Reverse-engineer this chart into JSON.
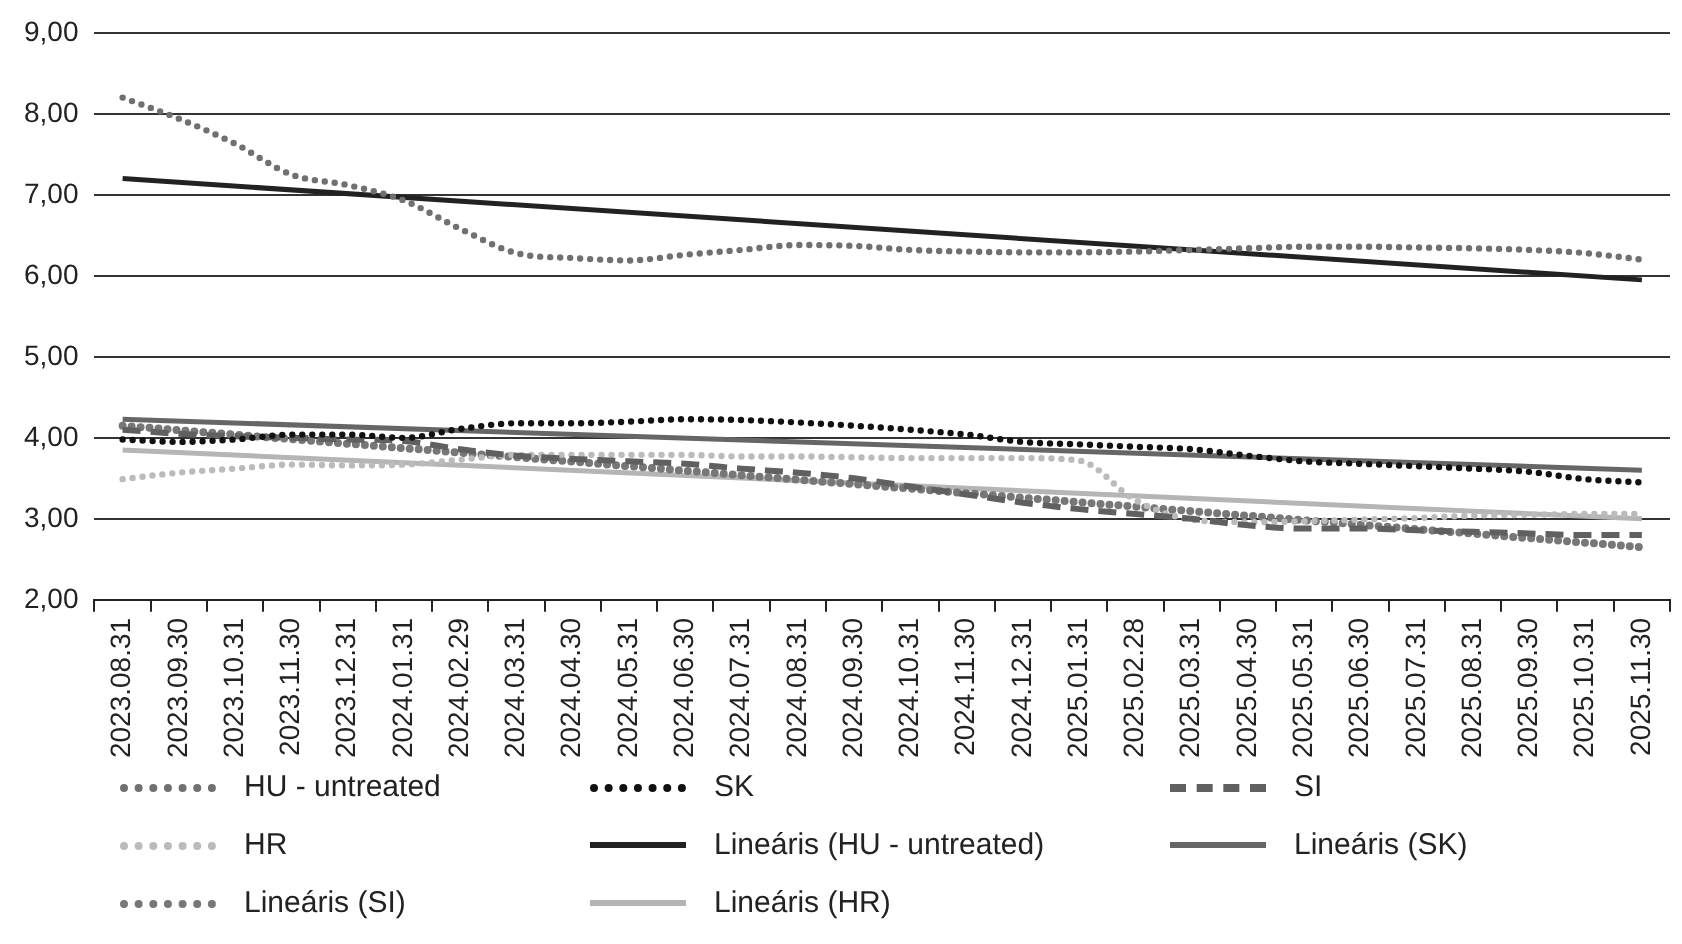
{
  "chart_data": {
    "type": "line",
    "categories": [
      "2023.08.31",
      "2023.09.30",
      "2023.10.31",
      "2023.11.30",
      "2023.12.31",
      "2024.01.31",
      "2024.02.29",
      "2024.03.31",
      "2024.04.30",
      "2024.05.31",
      "2024.06.30",
      "2024.07.31",
      "2024.08.31",
      "2024.09.30",
      "2024.10.31",
      "2024.11.30",
      "2024.12.31",
      "2025.01.31",
      "2025.02.28",
      "2025.03.31",
      "2025.04.30",
      "2025.05.31",
      "2025.06.30",
      "2025.07.31",
      "2025.08.31",
      "2025.09.30",
      "2025.10.31",
      "2025.11.30"
    ],
    "series": [
      {
        "name": "HU - untreated",
        "color": "#707070",
        "line_style": "dotted",
        "values": [
          8.2,
          7.94,
          7.63,
          7.25,
          7.12,
          6.93,
          6.58,
          6.28,
          6.22,
          6.19,
          6.26,
          6.32,
          6.38,
          6.37,
          6.32,
          6.3,
          6.29,
          6.29,
          6.3,
          6.32,
          6.34,
          6.36,
          6.36,
          6.35,
          6.34,
          6.32,
          6.28,
          6.2
        ]
      },
      {
        "name": "SK",
        "color": "#111111",
        "line_style": "dotted",
        "values": [
          3.98,
          3.95,
          3.98,
          4.04,
          4.04,
          4.0,
          4.11,
          4.18,
          4.18,
          4.2,
          4.23,
          4.22,
          4.19,
          4.15,
          4.1,
          4.04,
          3.95,
          3.92,
          3.89,
          3.86,
          3.78,
          3.71,
          3.68,
          3.65,
          3.62,
          3.58,
          3.49,
          3.45
        ]
      },
      {
        "name": "SI",
        "color": "#606060",
        "line_style": "dashed",
        "values": [
          4.1,
          4.05,
          4.02,
          4.0,
          3.98,
          3.96,
          3.86,
          3.78,
          3.74,
          3.71,
          3.68,
          3.62,
          3.57,
          3.5,
          3.4,
          3.3,
          3.2,
          3.12,
          3.06,
          3.0,
          2.92,
          2.88,
          2.88,
          2.86,
          2.84,
          2.82,
          2.8,
          2.8
        ]
      },
      {
        "name": "HR",
        "color": "#bbbbbb",
        "line_style": "dotted",
        "values": [
          3.49,
          3.57,
          3.62,
          3.67,
          3.66,
          3.67,
          3.73,
          3.79,
          3.79,
          3.79,
          3.79,
          3.77,
          3.77,
          3.76,
          3.75,
          3.75,
          3.75,
          3.72,
          3.23,
          2.99,
          2.96,
          2.97,
          2.99,
          3.01,
          3.04,
          3.05,
          3.06,
          3.06
        ]
      },
      {
        "name": "Lineáris (HU - untreated)",
        "type": "line",
        "color": "#222222",
        "line_style": "solid",
        "x": [
          "2023.08.31",
          "2025.11.30"
        ],
        "values": [
          7.2,
          5.95
        ]
      },
      {
        "name": "Lineáris (SK)",
        "type": "line",
        "color": "#666666",
        "line_style": "solid",
        "x": [
          "2023.08.31",
          "2025.11.30"
        ],
        "values": [
          4.23,
          3.6
        ]
      },
      {
        "name": "Lineáris (SI)",
        "type": "line",
        "color": "#777777",
        "line_style": "dotted",
        "x": [
          "2023.08.31",
          "2025.11.30"
        ],
        "values": [
          4.15,
          2.65
        ]
      },
      {
        "name": "Lineáris (HR)",
        "type": "line",
        "color": "#b5b5b5",
        "line_style": "solid",
        "x": [
          "2023.08.31",
          "2025.11.30"
        ],
        "values": [
          3.85,
          3.0
        ]
      }
    ],
    "ylim": [
      2,
      9
    ],
    "yticks": [
      {
        "value": 2,
        "label": "2,00"
      },
      {
        "value": 3,
        "label": "3,00"
      },
      {
        "value": 4,
        "label": "4,00"
      },
      {
        "value": 5,
        "label": "5,00"
      },
      {
        "value": 6,
        "label": "6,00"
      },
      {
        "value": 7,
        "label": "7,00"
      },
      {
        "value": 8,
        "label": "8,00"
      },
      {
        "value": 9,
        "label": "9,00"
      }
    ],
    "grid": "y",
    "legend": "bottom",
    "marker": "none"
  }
}
